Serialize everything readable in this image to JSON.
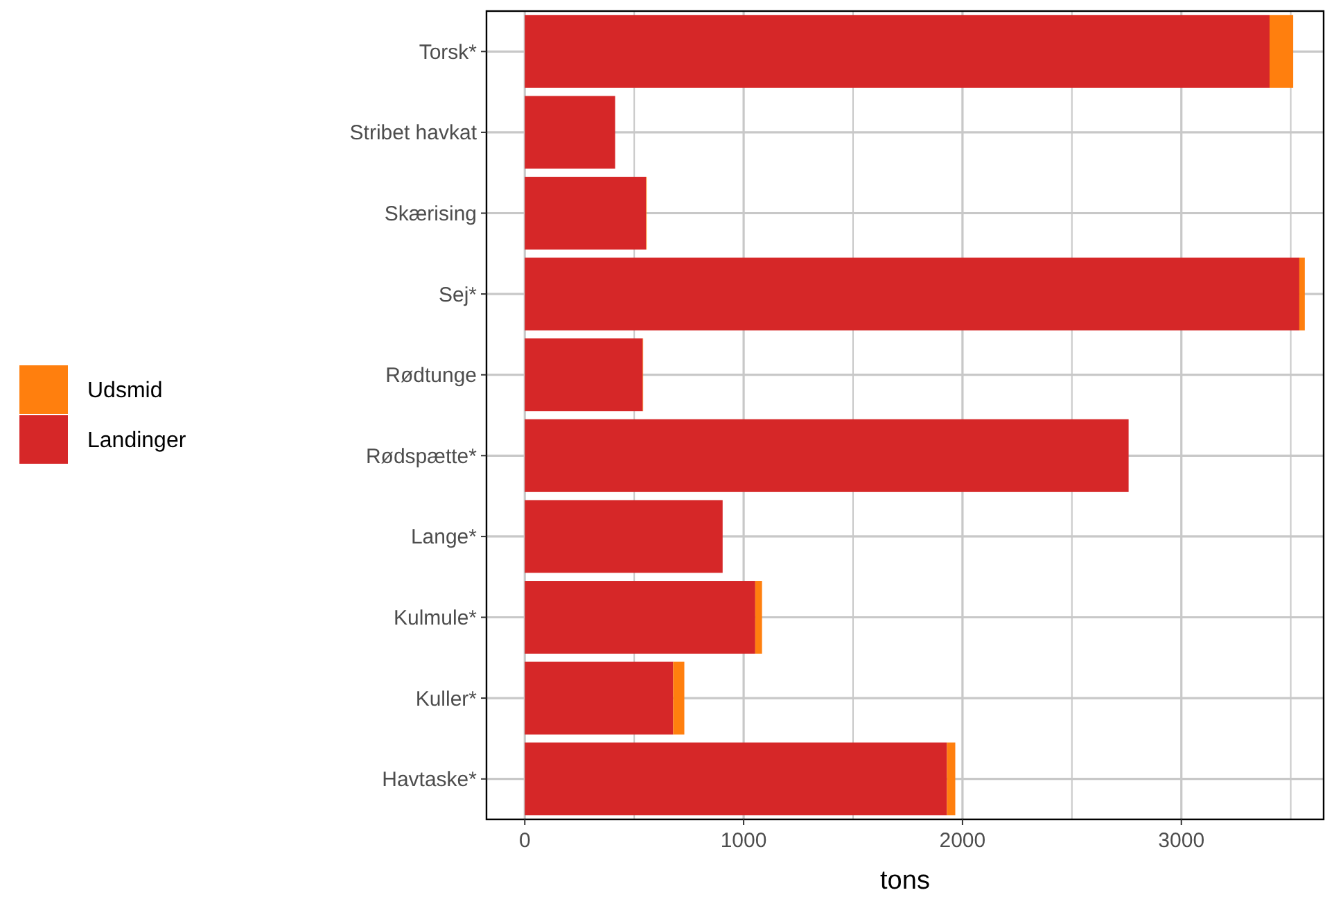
{
  "chart_data": {
    "type": "bar",
    "orientation": "horizontal",
    "stacked": true,
    "xlabel": "tons",
    "categories": [
      "Torsk*",
      "Stribet havkat",
      "Skærising",
      "Sej*",
      "Rødtunge",
      "Rødspætte*",
      "Lange*",
      "Kulmule*",
      "Kuller*",
      "Havtaske*"
    ],
    "series": [
      {
        "name": "Landinger",
        "color": "#d62728",
        "values": [
          3403,
          413,
          554,
          3539,
          539,
          2759,
          904,
          1053,
          678,
          1929
        ]
      },
      {
        "name": "Udsmid",
        "color": "#ff7f0e",
        "values": [
          108,
          0,
          3,
          25,
          2,
          0,
          0,
          31,
          51,
          38
        ]
      }
    ],
    "xlim": [
      -175,
      3650
    ],
    "xticks": [
      0,
      {
        "value": 500,
        "label": null
      },
      1000,
      {
        "value": 1500,
        "label": null
      },
      2000,
      {
        "value": 2500,
        "label": null
      },
      3000,
      {
        "value": 3500,
        "label": null
      }
    ],
    "grid": true,
    "legend": "left"
  }
}
